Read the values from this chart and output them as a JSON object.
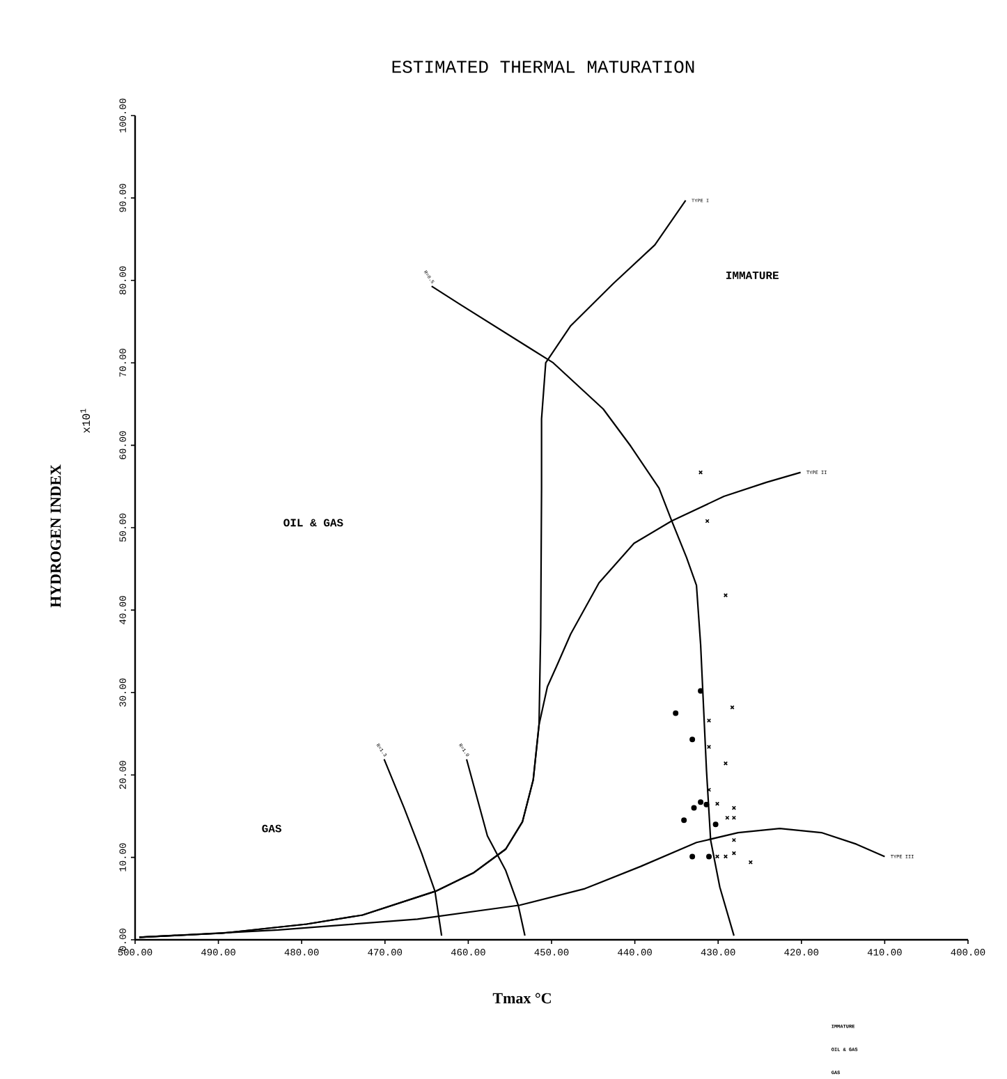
{
  "chart_data": {
    "type": "line",
    "title": "ESTIMATED THERMAL MATURATION",
    "xlabel": "Tmax °C",
    "ylabel": "HYDROGEN INDEX",
    "xlim": [
      500,
      400
    ],
    "ylim": [
      0,
      100
    ],
    "xticks": [
      {
        "value": 500,
        "label": "500.00"
      },
      {
        "value": 490,
        "label": "490.00"
      },
      {
        "value": 480,
        "label": "480.00"
      },
      {
        "value": 470,
        "label": "470.00"
      },
      {
        "value": 460,
        "label": "460.00"
      },
      {
        "value": 450,
        "label": "450.00"
      },
      {
        "value": 440,
        "label": "440.00"
      },
      {
        "value": 430,
        "label": "430.00"
      },
      {
        "value": 420,
        "label": "420.00"
      },
      {
        "value": 410,
        "label": "410.00"
      },
      {
        "value": 400,
        "label": "400.00"
      }
    ],
    "yticks": [
      {
        "value": 0,
        "label": "0.00"
      },
      {
        "value": 10,
        "label": "10.00"
      },
      {
        "value": 20,
        "label": "20.00"
      },
      {
        "value": 30,
        "label": "30.00"
      },
      {
        "value": 40,
        "label": "40.00"
      },
      {
        "value": 50,
        "label": "50.00"
      },
      {
        "value": 60,
        "label": "60.00"
      },
      {
        "value": 70,
        "label": "70.00"
      },
      {
        "value": 80,
        "label": "80.00"
      },
      {
        "value": 90,
        "label": "90.00"
      },
      {
        "value": 100,
        "label": "100.00"
      }
    ],
    "annotations": [
      "x10$^{1}$",
      "IMMATURE",
      "OIL & GAS",
      "GAS",
      "IMMATURE",
      "OIL & GAS",
      "GAS"
    ],
    "series": [
      {
        "name": "TYPE I",
        "color": "#000000",
        "x": [
          499.5,
          489.5,
          479.4,
          472.7,
          463.9,
          459.4,
          455.5,
          453.5,
          452.2,
          451.5,
          451.3,
          451.2,
          451.2,
          450.7,
          447.7,
          442.6,
          437.6,
          433.9
        ],
        "values": [
          0.3,
          0.8,
          1.9,
          3.0,
          5.9,
          8.1,
          11.0,
          14.3,
          19.4,
          26.1,
          37.9,
          54.8,
          63.2,
          70.0,
          74.5,
          79.6,
          84.3,
          89.7
        ]
      },
      {
        "name": "TYPE II",
        "color": "#000000",
        "x": [
          499.5,
          489.5,
          479.4,
          472.7,
          463.9,
          459.4,
          455.5,
          453.5,
          452.2,
          451.5,
          450.5,
          449.3,
          447.7,
          444.3,
          440.1,
          435.6,
          429.3,
          424.2,
          420.1
        ],
        "values": [
          0.3,
          0.8,
          1.9,
          3.0,
          5.9,
          8.1,
          11.0,
          14.3,
          19.4,
          26.1,
          30.7,
          33.4,
          37.1,
          43.3,
          48.1,
          50.8,
          53.8,
          55.5,
          56.7
        ]
      },
      {
        "name": "TYPE III",
        "color": "#000000",
        "x": [
          499.5,
          482.8,
          466.1,
          453.8,
          446.0,
          439.3,
          432.6,
          427.6,
          422.6,
          417.6,
          413.4,
          410.0
        ],
        "values": [
          0.3,
          1.2,
          2.5,
          4.2,
          6.2,
          8.9,
          11.8,
          13.0,
          13.5,
          13.0,
          11.6,
          10.1
        ]
      },
      {
        "name": "R=0.5",
        "color": "#000000",
        "x": [
          464.4,
          461.0,
          449.8,
          443.8,
          440.5,
          437.1,
          435.6,
          433.8,
          432.6,
          432.1,
          431.4,
          430.9,
          429.8,
          428.1
        ],
        "values": [
          79.3,
          77.1,
          70.0,
          64.4,
          59.9,
          54.8,
          50.9,
          46.4,
          43.0,
          35.8,
          20.6,
          12.1,
          6.4,
          0.5
        ]
      },
      {
        "name": "R=1.3",
        "color": "#000000",
        "x": [
          470.1,
          467.7,
          465.6,
          464.0,
          463.2
        ],
        "values": [
          21.9,
          16.0,
          10.5,
          5.9,
          0.5
        ]
      },
      {
        "name": "R=1.0",
        "color": "#000000",
        "x": [
          460.2,
          457.7,
          455.5,
          454.0,
          453.2
        ],
        "values": [
          21.9,
          12.6,
          8.4,
          4.2,
          0.5
        ]
      },
      {
        "type": "scatter",
        "marker": "cross",
        "color": "#000000",
        "x": [
          432.1,
          431.3,
          429.1,
          428.3,
          431.1,
          431.1,
          429.1,
          431.1,
          430.1,
          428.1,
          428.1,
          428.9,
          428.1,
          428.1,
          429.1,
          430.1,
          426.1
        ],
        "values": [
          56.7,
          50.8,
          41.8,
          28.2,
          26.6,
          23.4,
          21.4,
          18.2,
          16.5,
          16.0,
          14.8,
          14.8,
          12.1,
          10.5,
          10.1,
          10.1,
          9.4
        ]
      },
      {
        "type": "scatter",
        "marker": "circle",
        "color": "#000000",
        "x": [
          432.1,
          435.1,
          433.1,
          432.1,
          432.9,
          431.4,
          434.1,
          430.3,
          433.1,
          431.1
        ],
        "values": [
          30.2,
          27.5,
          24.3,
          16.7,
          16.0,
          16.4,
          14.5,
          14.0,
          10.1,
          10.1
        ]
      }
    ]
  }
}
